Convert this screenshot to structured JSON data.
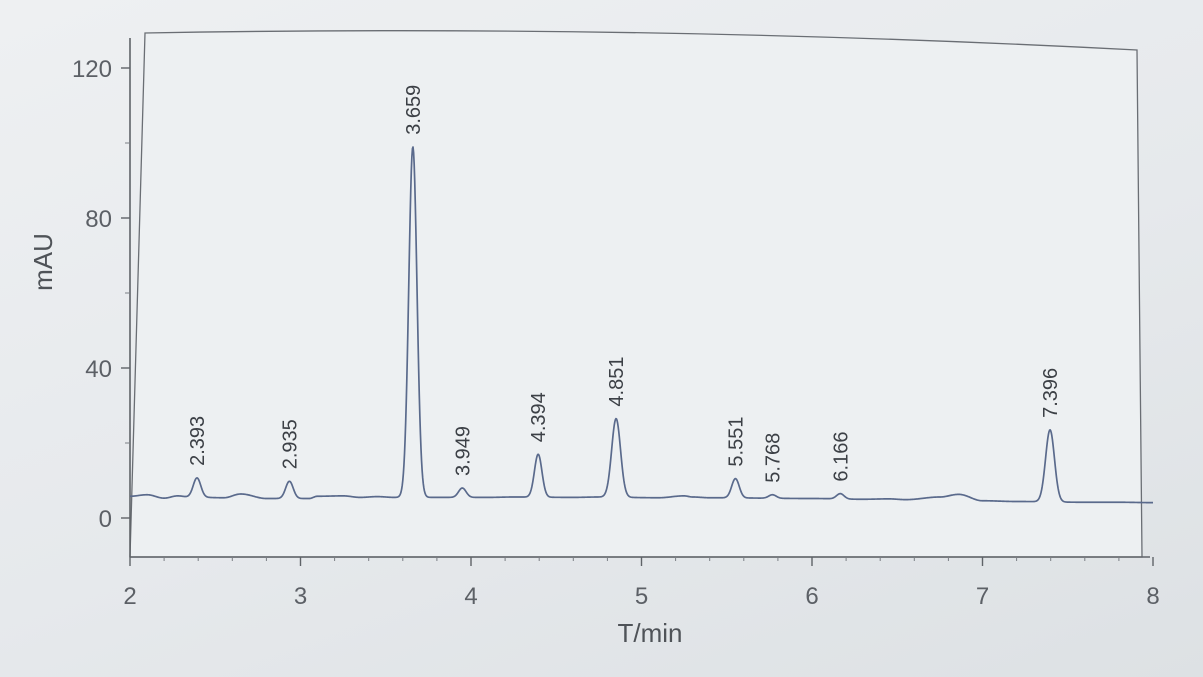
{
  "chart_data": {
    "type": "line",
    "title": "",
    "xlabel": "T/min",
    "ylabel": "mAU",
    "xlim": [
      2,
      8
    ],
    "ylim": [
      -10,
      130
    ],
    "xticks": [
      "2",
      "3",
      "4",
      "5",
      "6",
      "7",
      "8"
    ],
    "yticks": [
      "0",
      "40",
      "80",
      "120"
    ],
    "grid": false,
    "colors": {
      "trace": "#5a6a8c",
      "frame": "#6a6e74",
      "text": "#5c6066"
    },
    "baseline": [
      [
        2.0,
        5.8
      ],
      [
        2.1,
        6.2
      ],
      [
        2.2,
        5.3
      ],
      [
        2.28,
        5.9
      ],
      [
        2.35,
        5.6
      ],
      [
        2.55,
        5.4
      ],
      [
        2.65,
        6.4
      ],
      [
        2.8,
        5.2
      ],
      [
        3.05,
        5.2
      ],
      [
        3.1,
        5.8
      ],
      [
        3.25,
        5.9
      ],
      [
        3.35,
        5.5
      ],
      [
        3.45,
        5.7
      ],
      [
        3.55,
        5.5
      ],
      [
        3.9,
        5.5
      ],
      [
        4.1,
        5.5
      ],
      [
        4.25,
        5.6
      ],
      [
        4.6,
        5.5
      ],
      [
        4.75,
        5.6
      ],
      [
        5.1,
        5.4
      ],
      [
        5.25,
        5.9
      ],
      [
        5.3,
        5.6
      ],
      [
        5.4,
        5.4
      ],
      [
        6.0,
        5.2
      ],
      [
        6.3,
        5.0
      ],
      [
        6.45,
        5.1
      ],
      [
        6.55,
        4.9
      ],
      [
        6.75,
        5.6
      ],
      [
        6.86,
        6.3
      ],
      [
        7.0,
        4.6
      ],
      [
        7.2,
        4.4
      ],
      [
        7.6,
        4.2
      ],
      [
        7.8,
        4.2
      ],
      [
        8.0,
        4.1
      ]
    ],
    "peaks": [
      {
        "rt": 2.393,
        "label": "2.393",
        "height": 10.7
      },
      {
        "rt": 2.935,
        "label": "2.935",
        "height": 9.8
      },
      {
        "rt": 3.659,
        "label": "3.659",
        "height": 99.0
      },
      {
        "rt": 3.949,
        "label": "3.949",
        "height": 8.0
      },
      {
        "rt": 4.394,
        "label": "4.394",
        "height": 17.0
      },
      {
        "rt": 4.851,
        "label": "4.851",
        "height": 26.5
      },
      {
        "rt": 5.551,
        "label": "5.551",
        "height": 10.5
      },
      {
        "rt": 5.768,
        "label": "5.768",
        "height": 6.2
      },
      {
        "rt": 6.166,
        "label": "6.166",
        "height": 6.5
      },
      {
        "rt": 7.396,
        "label": "7.396",
        "height": 23.5
      }
    ]
  }
}
